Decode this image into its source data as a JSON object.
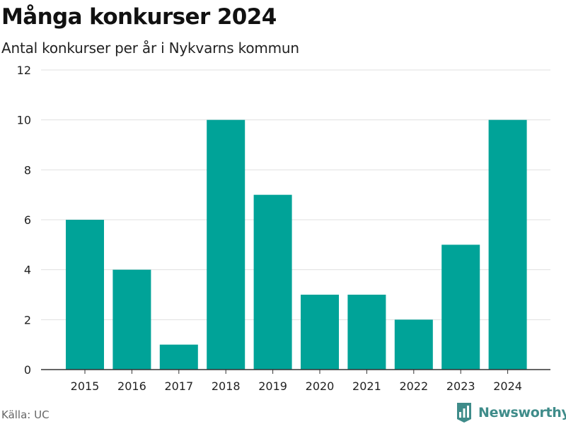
{
  "chart_data": {
    "type": "bar",
    "title": "Många konkurser 2024",
    "subtitle": "Antal konkurser per år i Nykvarns kommun",
    "categories": [
      "2015",
      "2016",
      "2017",
      "2018",
      "2019",
      "2020",
      "2021",
      "2022",
      "2023",
      "2024"
    ],
    "values": [
      6,
      4,
      1,
      10,
      7,
      3,
      3,
      2,
      5,
      10
    ],
    "ylim": [
      0,
      12
    ],
    "yticks": [
      "0",
      "2",
      "4",
      "6",
      "8",
      "10",
      "12"
    ],
    "xlabel": "",
    "ylabel": "",
    "grid": true,
    "bar_color": "#00a398",
    "grid_color": "#e0e0e0",
    "axis_color": "#333333"
  },
  "footer": {
    "source": "Källa: UC",
    "brand": "Newsworthy",
    "brand_color": "#3f8c8a"
  }
}
